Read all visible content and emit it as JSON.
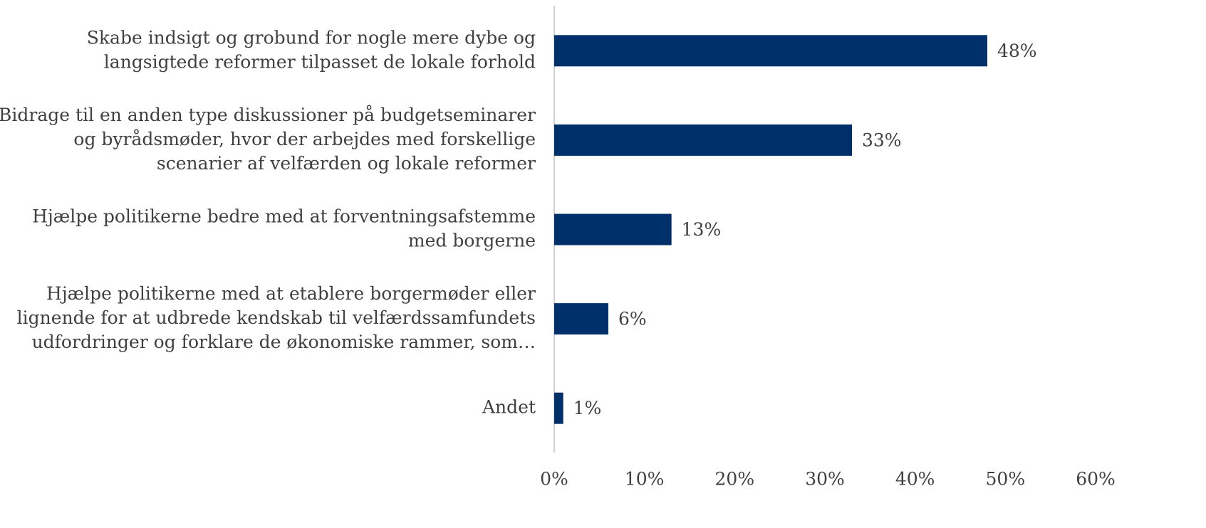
{
  "chart_data": {
    "type": "bar",
    "orientation": "horizontal",
    "categories": [
      "Skabe indsigt og grobund for nogle mere dybe og\nlangsigtede reformer tilpasset de lokale forhold",
      "Bidrage til en anden type diskussioner på budgetseminarer\nog byrådsmøder, hvor der arbejdes med forskellige\nscenarier af velfærden og lokale reformer",
      "Hjælpe politikerne bedre med at forventningsafstemme\nmed borgerne",
      "Hjælpe politikerne med at etablere borgermøder eller\nlignende for at udbrede kendskab til velfærdssamfundets\nudfordringer og forklare de økonomiske rammer, som…",
      "Andet"
    ],
    "values": [
      48,
      33,
      13,
      6,
      1
    ],
    "value_labels": [
      "48%",
      "33%",
      "13%",
      "6%",
      "1%"
    ],
    "color": "#00306a",
    "xlim": [
      0,
      60
    ],
    "xticks": [
      {
        "value": 0,
        "label": "0%"
      },
      {
        "value": 10,
        "label": "10%"
      },
      {
        "value": 20,
        "label": "20%"
      },
      {
        "value": 30,
        "label": "30%"
      },
      {
        "value": 40,
        "label": "40%"
      },
      {
        "value": 50,
        "label": "50%"
      },
      {
        "value": 60,
        "label": "60%"
      }
    ],
    "grid": false
  }
}
